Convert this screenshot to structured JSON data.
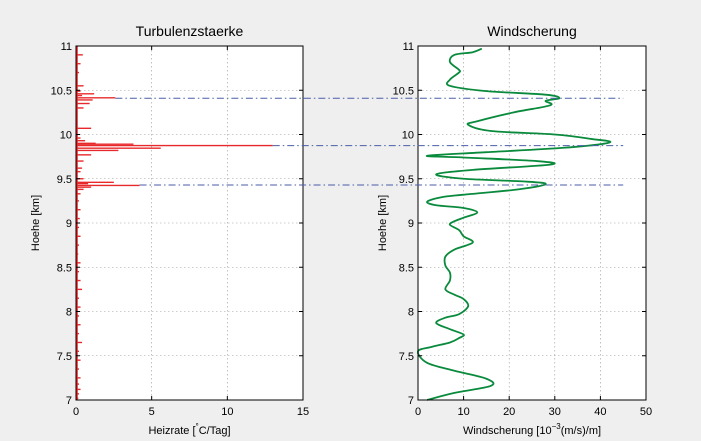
{
  "colors": {
    "background": "#efefef",
    "axes_bg": "#ffffff",
    "turbulence": "#e8292b",
    "windshear": "#0a8a3c",
    "hlines": "#4a5ea8"
  },
  "chart_data": [
    {
      "type": "bar",
      "title": "Turbulenzstaerke",
      "xlabel": "Heizrate [°C/Tag]",
      "xlabel_parts": {
        "before": "Heizrate [",
        "super": "°",
        "after": "C/Tag]"
      },
      "ylabel": "Hoehe [km]",
      "xlim": [
        0,
        15
      ],
      "ylim": [
        7,
        11
      ],
      "xticks": [
        "0",
        "5",
        "10",
        "15"
      ],
      "yticks": [
        "7",
        "7.5",
        "8",
        "8.5",
        "9",
        "9.5",
        "10",
        "10.5",
        "11"
      ],
      "grid": true,
      "orientation": "horizontal",
      "x": [
        0.45,
        0.3,
        0.2,
        0.5,
        0.3,
        1.2,
        0.4,
        2.6,
        1.1,
        0.9,
        0.5,
        1.0,
        0.3,
        0.6,
        1.3,
        3.8,
        13.0,
        5.6,
        2.8,
        1.0,
        0.5,
        0.4,
        0.3,
        0.5,
        2.5,
        0.8,
        4.2,
        1.0,
        0.5,
        0.3,
        0.2,
        0.3,
        0.25,
        0.2,
        0.3,
        0.2,
        0.15,
        0.3,
        0.2,
        0.3,
        0.4,
        0.2,
        0.3,
        0.2,
        0.3,
        0.2,
        0.4,
        0.2,
        0.3,
        0.2,
        0.3,
        0.2,
        0.3,
        0.2,
        0.15
      ],
      "y": [
        10.9,
        10.8,
        10.7,
        10.55,
        10.49,
        10.46,
        10.44,
        10.415,
        10.39,
        10.35,
        10.3,
        10.07,
        9.96,
        9.93,
        9.9,
        9.89,
        9.875,
        9.845,
        9.82,
        9.77,
        9.7,
        9.62,
        9.58,
        9.5,
        9.46,
        9.445,
        9.425,
        9.405,
        9.38,
        9.33,
        9.25,
        9.15,
        9.05,
        8.95,
        8.85,
        8.75,
        8.65,
        8.55,
        8.45,
        8.35,
        8.25,
        8.15,
        8.05,
        7.95,
        7.85,
        7.75,
        7.65,
        7.55,
        7.45,
        7.35,
        7.25,
        7.18,
        7.12,
        7.07,
        7.02
      ]
    },
    {
      "type": "line",
      "title": "Windscherung",
      "xlabel": "Windscherung [10^-3(m/s)/m]",
      "xlabel_parts": {
        "before": "Windscherung [10",
        "super": "−3",
        "after": "(m/s)/m]"
      },
      "ylabel": "Hoehe [km]",
      "xlim": [
        0,
        50
      ],
      "ylim": [
        7,
        11
      ],
      "xticks": [
        "0",
        "10",
        "20",
        "30",
        "40",
        "50"
      ],
      "yticks": [
        "7",
        "7.5",
        "8",
        "8.5",
        "9",
        "9.5",
        "10",
        "10.5",
        "11"
      ],
      "grid": true,
      "x": [
        14,
        12,
        8,
        7,
        9,
        9,
        7,
        7,
        15,
        28,
        31,
        28,
        29,
        21,
        13,
        11,
        16,
        30,
        38,
        42,
        32,
        15,
        2,
        10,
        26,
        29,
        12,
        4,
        10,
        23,
        28,
        22,
        10,
        5,
        2,
        4,
        10,
        13,
        10,
        8,
        7,
        9,
        10,
        12,
        8,
        6,
        6,
        7,
        7,
        6,
        8,
        10,
        11,
        9,
        6,
        4,
        7,
        10,
        9,
        7,
        3,
        0,
        2,
        8,
        15,
        16,
        8,
        2
      ],
      "y": [
        10.97,
        10.93,
        10.9,
        10.82,
        10.73,
        10.7,
        10.62,
        10.55,
        10.49,
        10.45,
        10.41,
        10.38,
        10.33,
        10.25,
        10.15,
        10.11,
        10.04,
        10.0,
        9.95,
        9.91,
        9.85,
        9.8,
        9.76,
        9.74,
        9.7,
        9.66,
        9.6,
        9.55,
        9.5,
        9.47,
        9.44,
        9.38,
        9.32,
        9.29,
        9.24,
        9.2,
        9.17,
        9.12,
        9.06,
        9.02,
        8.98,
        8.92,
        8.85,
        8.78,
        8.7,
        8.62,
        8.52,
        8.44,
        8.35,
        8.25,
        8.19,
        8.14,
        8.06,
        7.97,
        7.93,
        7.87,
        7.8,
        7.74,
        7.7,
        7.65,
        7.6,
        7.55,
        7.42,
        7.33,
        7.24,
        7.16,
        7.08,
        7.0
      ]
    }
  ],
  "hlines": [
    {
      "y": 10.41,
      "x1_data_left": 2.6,
      "x2_data_right": 45
    },
    {
      "y": 9.875,
      "x1_data_left": 13.0,
      "x2_data_right": 45
    },
    {
      "y": 9.43,
      "x1_data_left": 4.2,
      "x2_data_right": 45
    }
  ]
}
